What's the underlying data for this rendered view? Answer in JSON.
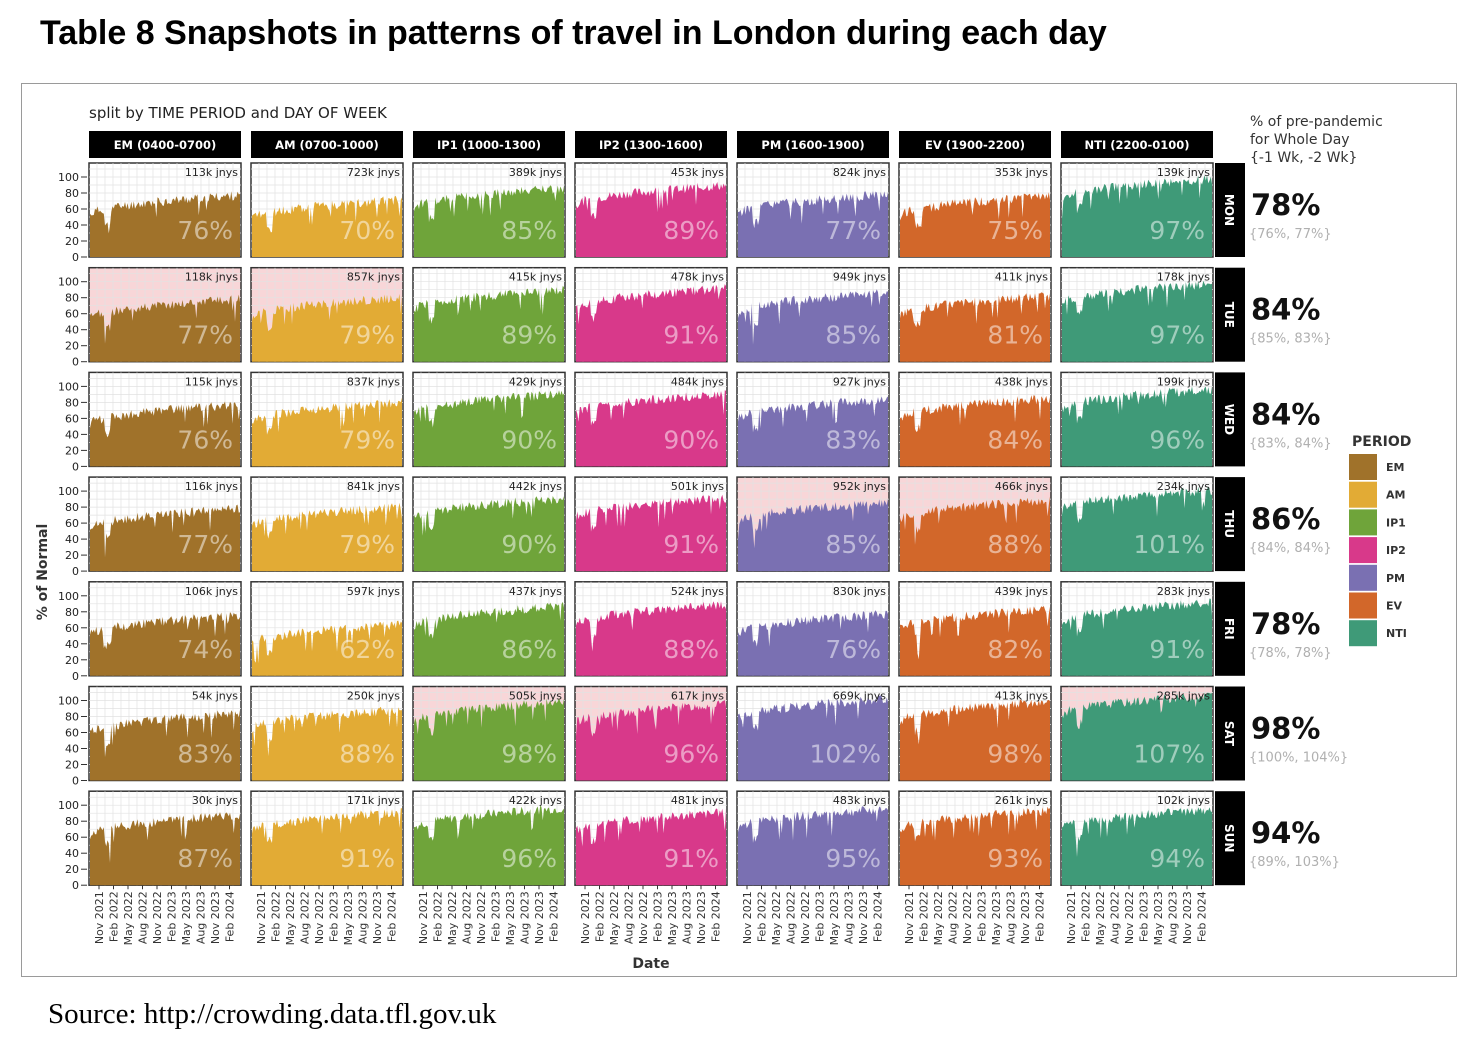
{
  "title": "Table 8 Snapshots in patterns of travel in London during each day",
  "source": "Source: http://crowding.data.tfl.gov.uk",
  "chart_data": {
    "type": "area",
    "subtitle": "split by TIME PERIOD and DAY OF WEEK",
    "ylabel": "% of Normal",
    "xlabel": "Date",
    "yticks": [
      "0",
      "20",
      "40",
      "60",
      "80",
      "100"
    ],
    "xticks": [
      "Nov 2021",
      "Feb 2022",
      "May 2022",
      "Aug 2022",
      "Nov 2022",
      "Feb 2023",
      "May 2023",
      "Aug 2023",
      "Nov 2023",
      "Feb 2024"
    ],
    "periods": [
      {
        "label": "EM (0400-0700)",
        "legend": "EM",
        "color": "#a0722a"
      },
      {
        "label": "AM (0700-1000)",
        "legend": "AM",
        "color": "#e2ab35"
      },
      {
        "label": "IP1 (1000-1300)",
        "legend": "IP1",
        "color": "#6fa43a"
      },
      {
        "label": "IP2 (1300-1600)",
        "legend": "IP2",
        "color": "#d8398a"
      },
      {
        "label": "PM (1600-1900)",
        "legend": "PM",
        "color": "#7a70b2"
      },
      {
        "label": "EV (1900-2200)",
        "legend": "EV",
        "color": "#d2672a"
      },
      {
        "label": "NTI (2200-0100)",
        "legend": "NTI",
        "color": "#3f9a78"
      }
    ],
    "legend_title": "PERIOD",
    "days": [
      "MON",
      "TUE",
      "WED",
      "THU",
      "FRI",
      "SAT",
      "SUN"
    ],
    "journeys": [
      [
        "113k jnys",
        "723k jnys",
        "389k jnys",
        "453k jnys",
        "824k jnys",
        "353k jnys",
        "139k jnys"
      ],
      [
        "118k jnys",
        "857k jnys",
        "415k jnys",
        "478k jnys",
        "949k jnys",
        "411k jnys",
        "178k jnys"
      ],
      [
        "115k jnys",
        "837k jnys",
        "429k jnys",
        "484k jnys",
        "927k jnys",
        "438k jnys",
        "199k jnys"
      ],
      [
        "116k jnys",
        "841k jnys",
        "442k jnys",
        "501k jnys",
        "952k jnys",
        "466k jnys",
        "234k jnys"
      ],
      [
        "106k jnys",
        "597k jnys",
        "437k jnys",
        "524k jnys",
        "830k jnys",
        "439k jnys",
        "283k jnys"
      ],
      [
        "54k jnys",
        "250k jnys",
        "505k jnys",
        "617k jnys",
        "669k jnys",
        "413k jnys",
        "285k jnys"
      ],
      [
        "30k jnys",
        "171k jnys",
        "422k jnys",
        "481k jnys",
        "483k jnys",
        "261k jnys",
        "102k jnys"
      ]
    ],
    "percent": [
      [
        "76%",
        "70%",
        "85%",
        "89%",
        "77%",
        "75%",
        "97%"
      ],
      [
        "77%",
        "79%",
        "89%",
        "91%",
        "85%",
        "81%",
        "97%"
      ],
      [
        "76%",
        "79%",
        "90%",
        "90%",
        "83%",
        "84%",
        "96%"
      ],
      [
        "77%",
        "79%",
        "90%",
        "91%",
        "85%",
        "88%",
        "101%"
      ],
      [
        "74%",
        "62%",
        "86%",
        "88%",
        "76%",
        "82%",
        "91%"
      ],
      [
        "83%",
        "88%",
        "98%",
        "96%",
        "102%",
        "98%",
        "107%"
      ],
      [
        "87%",
        "91%",
        "96%",
        "91%",
        "95%",
        "93%",
        "94%"
      ]
    ],
    "highlighted": [
      [
        false,
        false,
        false,
        false,
        false,
        false,
        false
      ],
      [
        true,
        true,
        false,
        false,
        false,
        false,
        false
      ],
      [
        false,
        false,
        false,
        false,
        false,
        false,
        false
      ],
      [
        false,
        false,
        false,
        false,
        true,
        true,
        false
      ],
      [
        false,
        false,
        false,
        false,
        false,
        false,
        false
      ],
      [
        false,
        false,
        true,
        true,
        false,
        false,
        true
      ],
      [
        false,
        false,
        false,
        false,
        false,
        false,
        false
      ]
    ],
    "whole_day": {
      "header": [
        "% of pre-pandemic",
        "for Whole Day",
        "{-1 Wk, -2 Wk}"
      ],
      "values": [
        "78%",
        "84%",
        "84%",
        "86%",
        "78%",
        "98%",
        "94%"
      ],
      "previous": [
        "{76%, 77%}",
        "{85%, 83%}",
        "{83%, 84%}",
        "{84%, 84%}",
        "{78%, 78%}",
        "{100%, 104%}",
        "{89%, 103%}"
      ]
    },
    "highlight_color": "#f8d6d8"
  }
}
